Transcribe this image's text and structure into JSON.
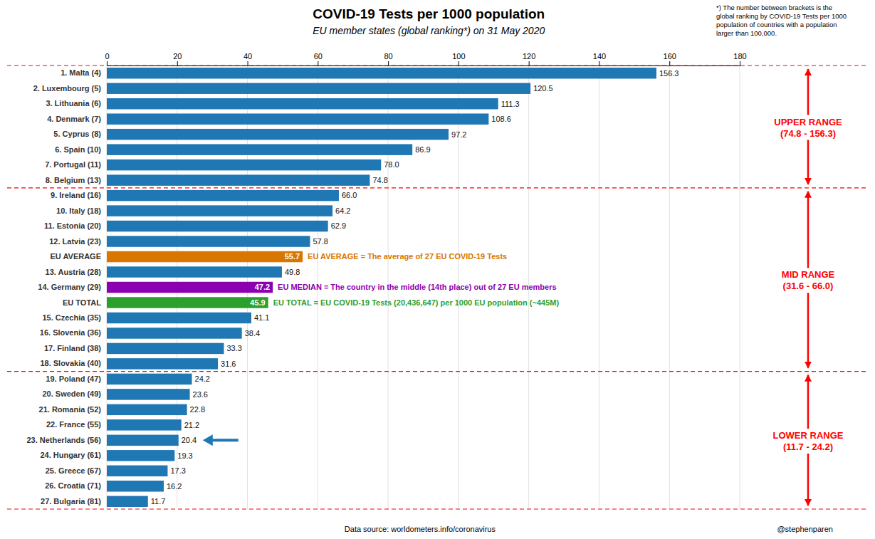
{
  "chart_data": {
    "type": "bar",
    "orientation": "horizontal",
    "title": "COVID-19 Tests per 1000 population",
    "subtitle": "EU member states (global ranking*) on 31 May 2020",
    "footnote": "*) The number between brackets is the\nglobal ranking by COVID-19 Tests per 1000\npopulation of countries with a population\nlarger than 100,000.",
    "datasource": "Data source: worldometers.info/coronavirus",
    "credit": "@stephenparen",
    "categories": [
      "1. Malta (4)",
      "2. Luxembourg (5)",
      "3. Lithuania (6)",
      "4. Denmark (7)",
      "5. Cyprus (8)",
      "6. Spain (10)",
      "7. Portugal (11)",
      "8. Belgium (13)",
      "9. Ireland (16)",
      "10. Italy (18)",
      "11. Estonia (20)",
      "12. Latvia (23)",
      "EU AVERAGE",
      "13. Austria (28)",
      "14. Germany (29)",
      "EU TOTAL",
      "15. Czechia (35)",
      "16. Slovenia (36)",
      "17. Finland (38)",
      "18. Slovakia (40)",
      "19. Poland (47)",
      "20. Sweden (49)",
      "21. Romania (52)",
      "22. France (55)",
      "23. Netherlands (56)",
      "24. Hungary (61)",
      "25. Greece (67)",
      "26. Croatia (71)",
      "27. Bulgaria (81)"
    ],
    "values": [
      156.3,
      120.5,
      111.3,
      108.6,
      97.2,
      86.9,
      78.0,
      74.8,
      66.0,
      64.2,
      62.9,
      57.8,
      55.7,
      49.8,
      47.2,
      45.9,
      41.1,
      38.4,
      33.3,
      31.6,
      24.2,
      23.6,
      22.8,
      21.2,
      20.4,
      19.3,
      17.3,
      16.2,
      11.7
    ],
    "value_labels": [
      "156.3",
      "120.5",
      "111.3",
      "108.6",
      "97.2",
      "86.9",
      "78.0",
      "74.8",
      "66.0",
      "64.2",
      "62.9",
      "57.8",
      "55.7",
      "49.8",
      "47.2",
      "45.9",
      "41.1",
      "38.4",
      "33.3",
      "31.6",
      "24.2",
      "23.6",
      "22.8",
      "21.2",
      "20.4",
      "19.3",
      "17.3",
      "16.2",
      "11.7"
    ],
    "colors": [
      "#1F77B4",
      "#1F77B4",
      "#1F77B4",
      "#1F77B4",
      "#1F77B4",
      "#1F77B4",
      "#1F77B4",
      "#1F77B4",
      "#1F77B4",
      "#1F77B4",
      "#1F77B4",
      "#1F77B4",
      "#D97600",
      "#1F77B4",
      "#8B00B0",
      "#2CA02C",
      "#1F77B4",
      "#1F77B4",
      "#1F77B4",
      "#1F77B4",
      "#1F77B4",
      "#1F77B4",
      "#1F77B4",
      "#1F77B4",
      "#1F77B4",
      "#1F77B4",
      "#1F77B4",
      "#1F77B4",
      "#1F77B4"
    ],
    "xlim": [
      0,
      180
    ],
    "xticks": [
      0,
      20,
      40,
      60,
      80,
      100,
      120,
      140,
      160,
      180
    ],
    "grid": true,
    "data_labels": true,
    "annotations": [
      {
        "category": "EU AVERAGE",
        "text": "EU AVERAGE = The average of 27 EU COVID-19 Tests"
      },
      {
        "category": "14. Germany (29)",
        "text": "EU MEDIAN = The country in the middle (14th place) out of 27 EU members"
      },
      {
        "category": "EU TOTAL",
        "text": "EU TOTAL = EU COVID-19 Tests (20,436,647) per 1000 EU population (~445M)"
      },
      {
        "category": "23. Netherlands (56)",
        "marker": "arrow"
      }
    ],
    "ranges": [
      {
        "label": "UPPER RANGE\n(74.8 - 156.3)",
        "from": "1. Malta (4)",
        "to": "8. Belgium (13)"
      },
      {
        "label": "MID RANGE\n(31.6 - 66.0)",
        "from": "9. Ireland (16)",
        "to": "18. Slovakia (40)"
      },
      {
        "label": "LOWER RANGE\n(11.7 - 24.2)",
        "from": "19. Poland (47)",
        "to": "27. Bulgaria (81)"
      }
    ]
  }
}
